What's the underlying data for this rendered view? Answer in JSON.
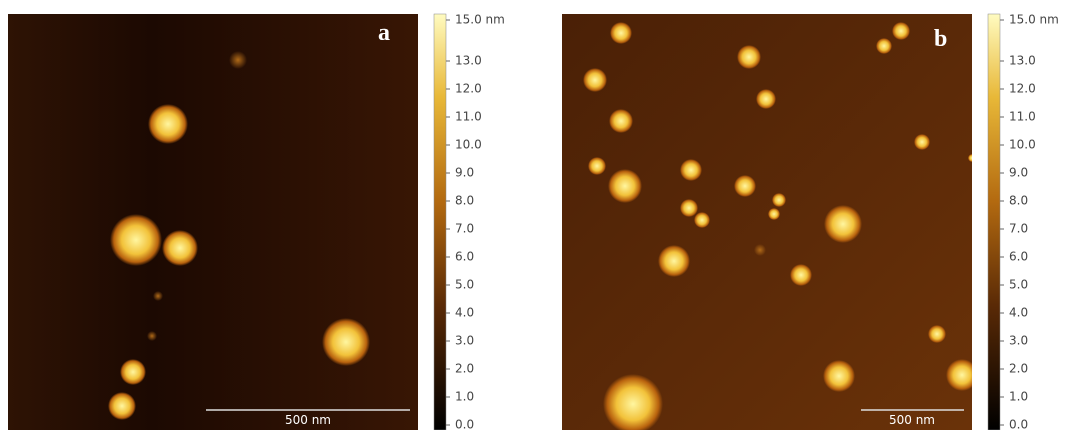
{
  "panels": [
    {
      "label": "a",
      "scale_bar": "500 nm",
      "colorbar_ticks": [
        "15.0 nm",
        "13.0",
        "12.0",
        "11.0",
        "10.0",
        "9.0",
        "8.0",
        "7.0",
        "6.0",
        "5.0",
        "4.0",
        "3.0",
        "2.0",
        "1.0",
        "0.0"
      ]
    },
    {
      "label": "b",
      "scale_bar": "500 nm",
      "colorbar_ticks": [
        "15.0 nm",
        "13.0",
        "12.0",
        "11.0",
        "10.0",
        "9.0",
        "8.0",
        "7.0",
        "6.0",
        "5.0",
        "4.0",
        "3.0",
        "2.0",
        "1.0",
        "0.0"
      ]
    }
  ]
}
